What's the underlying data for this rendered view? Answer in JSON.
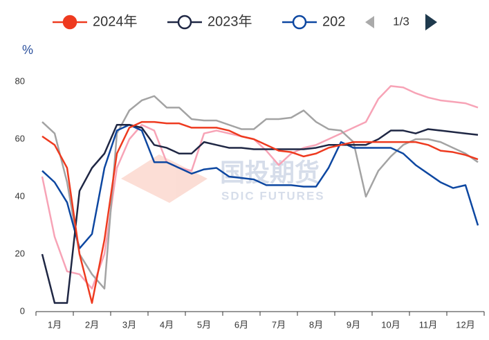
{
  "chart_data": {
    "type": "line",
    "y_unit": "%",
    "watermark": {
      "cn": "国投期货",
      "en": "SDIC FUTURES"
    },
    "legend_page": "1/3",
    "categories": [
      null,
      "1月",
      null,
      null,
      "2月",
      null,
      null,
      "3月",
      null,
      null,
      "4月",
      null,
      null,
      "5月",
      null,
      null,
      "6月",
      null,
      null,
      "7月",
      null,
      null,
      "8月",
      null,
      null,
      "9月",
      null,
      null,
      "10月",
      null,
      null,
      "11月",
      null,
      null,
      "12月",
      null
    ],
    "ylim": [
      0,
      80
    ],
    "yticks": [
      0,
      20,
      40,
      60,
      80
    ],
    "grid": false,
    "series": [
      {
        "color": "#f7a3b6",
        "values": [
          47,
          26,
          14,
          13,
          8,
          20,
          50,
          60,
          65,
          63,
          52,
          50,
          49,
          62,
          63,
          62,
          61,
          60,
          56,
          51,
          55,
          57,
          58,
          60,
          62,
          64,
          66,
          74,
          78.5,
          78,
          76,
          74.5,
          73.5,
          73,
          72.5,
          71
        ]
      },
      {
        "color": "#a3a3a3",
        "values": [
          66,
          62,
          45,
          20,
          13,
          8,
          62,
          70,
          73.5,
          75,
          71,
          71,
          67,
          66.5,
          66.5,
          65,
          63.5,
          63.5,
          67,
          67,
          67.5,
          70,
          66,
          63.5,
          63,
          59,
          40,
          49,
          54,
          58,
          60,
          60,
          59,
          57,
          55,
          52
        ]
      },
      {
        "name": "202",
        "color": "#0d47a1",
        "values": [
          49,
          45,
          38,
          22,
          27,
          50,
          63,
          65,
          63,
          52,
          52,
          50,
          48,
          49.5,
          50,
          47,
          46.5,
          46,
          44,
          44,
          44,
          43.5,
          43.5,
          50,
          59,
          57,
          57,
          57,
          57,
          55,
          51,
          48,
          45,
          43,
          44,
          30
        ]
      },
      {
        "name": "2023年",
        "color": "#1f2744",
        "values": [
          20,
          3,
          3,
          42,
          50,
          55,
          65,
          65,
          64,
          58,
          57,
          55,
          55,
          59,
          58,
          57,
          57,
          56.5,
          56.5,
          56.5,
          56.5,
          56.5,
          57,
          58,
          58,
          58,
          58,
          60,
          63,
          63,
          62,
          63.5,
          63,
          62.5,
          62,
          61.5
        ]
      },
      {
        "name": "2024年",
        "color": "#ee3a1f",
        "values": [
          61,
          58,
          50,
          20,
          3,
          25,
          55,
          64,
          66,
          66,
          65.5,
          65.5,
          64,
          64,
          64,
          63,
          61,
          60,
          58,
          56,
          55.5,
          54,
          55,
          57,
          58,
          59,
          59,
          59,
          59,
          59,
          59,
          58,
          56,
          55.5,
          54.5,
          53
        ]
      }
    ],
    "legend_order": [
      4,
      3,
      2
    ]
  }
}
